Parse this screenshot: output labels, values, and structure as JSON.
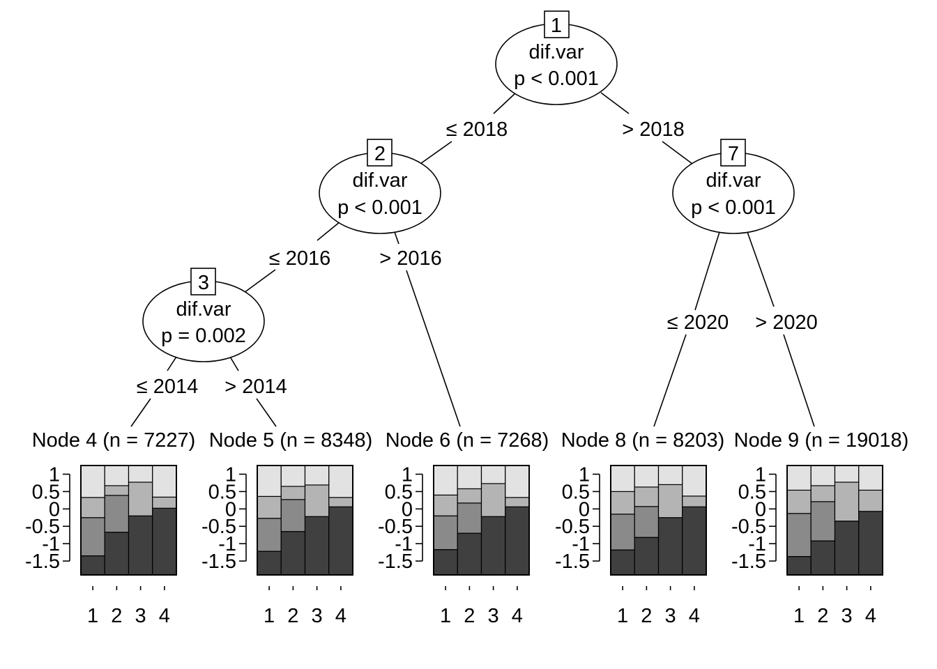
{
  "tree": {
    "inner_nodes": [
      {
        "id": "1",
        "variable": "dif.var",
        "pvalue": "p < 0.001"
      },
      {
        "id": "2",
        "variable": "dif.var",
        "pvalue": "p < 0.001"
      },
      {
        "id": "3",
        "variable": "dif.var",
        "pvalue": "p = 0.002"
      },
      {
        "id": "7",
        "variable": "dif.var",
        "pvalue": "p < 0.001"
      }
    ],
    "edge_labels": [
      {
        "from": "1",
        "to": "2",
        "label": "≤ 2018"
      },
      {
        "from": "1",
        "to": "7",
        "label": "> 2018"
      },
      {
        "from": "2",
        "to": "3",
        "label": "≤ 2016"
      },
      {
        "from": "2",
        "to": "6",
        "label": "> 2016"
      },
      {
        "from": "3",
        "to": "4",
        "label": "≤ 2014"
      },
      {
        "from": "3",
        "to": "5",
        "label": "> 2014"
      },
      {
        "from": "7",
        "to": "8",
        "label": "≤ 2020"
      },
      {
        "from": "7",
        "to": "9",
        "label": "> 2020"
      }
    ]
  },
  "chart_data": {
    "type": "bar",
    "subtype": "stacked-proportion",
    "y_tick_labels": [
      "1",
      "0.5",
      "0",
      "-0.5",
      "-1",
      "-1.5"
    ],
    "y_ticks": [
      1,
      0.5,
      0,
      -0.5,
      -1,
      -1.5
    ],
    "ylim": [
      -1.9,
      1.25
    ],
    "x_tick_labels": [
      "1",
      "2",
      "3",
      "4"
    ],
    "colors": [
      "#404040",
      "#8a8a8a",
      "#b4b4b4",
      "#e2e2e2"
    ],
    "panels": [
      {
        "title": "Node 4 (n = 7227)",
        "bars": [
          [
            -1.35,
            -0.25,
            0.33
          ],
          [
            -0.67,
            0.39,
            0.67
          ],
          [
            -0.2,
            0.77
          ],
          [
            0.02,
            0.34
          ]
        ]
      },
      {
        "title": "Node 5 (n = 8348)",
        "bars": [
          [
            -1.22,
            -0.27,
            0.36
          ],
          [
            -0.65,
            0.27,
            0.65
          ],
          [
            -0.22,
            0.69
          ],
          [
            0.06,
            0.33
          ]
        ]
      },
      {
        "title": "Node 6 (n = 7268)",
        "bars": [
          [
            -1.17,
            -0.2,
            0.4
          ],
          [
            -0.7,
            0.17,
            0.58
          ],
          [
            -0.22,
            0.73
          ],
          [
            0.06,
            0.33
          ]
        ]
      },
      {
        "title": "Node 8 (n = 8203)",
        "bars": [
          [
            -1.18,
            -0.15,
            0.5
          ],
          [
            -0.82,
            0.07,
            0.63
          ],
          [
            -0.25,
            0.7
          ],
          [
            0.06,
            0.37
          ]
        ]
      },
      {
        "title": "Node 9 (n = 19018)",
        "bars": [
          [
            -1.37,
            -0.13,
            0.54
          ],
          [
            -0.92,
            0.21,
            0.67
          ],
          [
            -0.35,
            0.77
          ],
          [
            -0.07,
            0.54
          ]
        ]
      }
    ]
  }
}
